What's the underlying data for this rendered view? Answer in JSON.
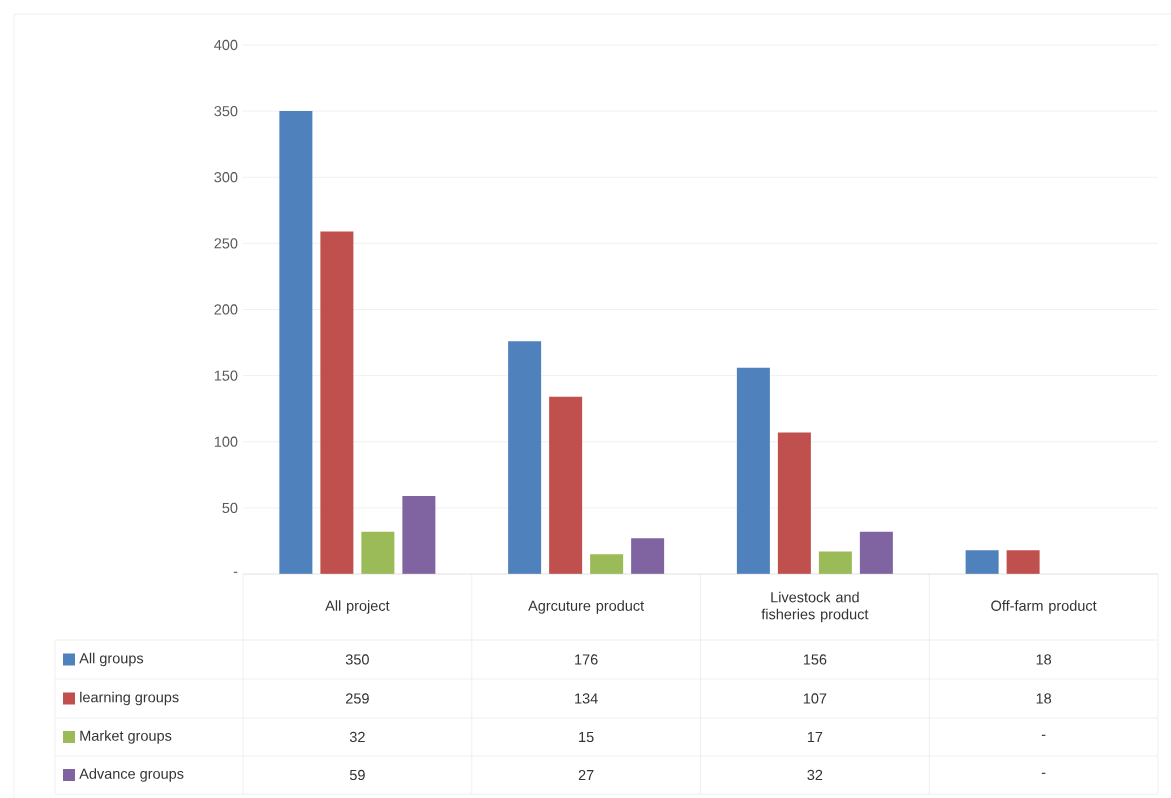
{
  "chart_data": {
    "type": "bar",
    "categories": [
      "All project",
      "Agrcuture product",
      "Livestock and fisheries product",
      "Off-farm product"
    ],
    "series": [
      {
        "name": "All groups",
        "color": "#4f81bd",
        "values": [
          350,
          176,
          156,
          18
        ],
        "value_labels": [
          "350",
          "176",
          "156",
          "18"
        ]
      },
      {
        "name": "learning groups",
        "color": "#c0504d",
        "values": [
          259,
          134,
          107,
          18
        ],
        "value_labels": [
          "259",
          "134",
          "107",
          "18"
        ]
      },
      {
        "name": "Market groups",
        "color": "#9bbb59",
        "values": [
          32,
          15,
          17,
          null
        ],
        "value_labels": [
          "32",
          "15",
          "17",
          "-"
        ]
      },
      {
        "name": "Advance groups",
        "color": "#8064a2",
        "values": [
          59,
          27,
          32,
          null
        ],
        "value_labels": [
          "59",
          "27",
          "32",
          "-"
        ]
      }
    ],
    "ylim": [
      0,
      400
    ],
    "yticks": [
      {
        "value": 0,
        "label": "-"
      },
      50,
      100,
      150,
      200,
      250,
      300,
      350,
      400
    ],
    "grid": "y",
    "legend": "bottom"
  }
}
